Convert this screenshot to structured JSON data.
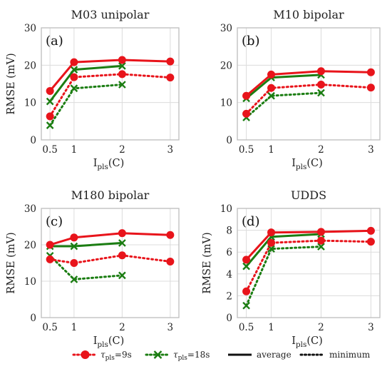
{
  "legend": {
    "items": [
      {
        "kind": "series",
        "color": "#e8141b",
        "marker": "circle",
        "label": "τ",
        "label_sub": "pls",
        "label_rest": "=9s"
      },
      {
        "kind": "series",
        "color": "#1b7d12",
        "marker": "x",
        "label": "τ",
        "label_sub": "pls",
        "label_rest": "=18s"
      },
      {
        "kind": "style",
        "dash": "solid",
        "label": "average"
      },
      {
        "kind": "style",
        "dash": "dotted",
        "label": "minimum"
      }
    ]
  },
  "colors": {
    "tau9": "#e8141b",
    "tau18": "#1b7d12",
    "grid": "#dcdcdc",
    "frame": "#bdbdbd"
  },
  "chart_data": [
    {
      "type": "line",
      "panel_label": "(a)",
      "title": "M03 unipolar",
      "xlabel": "I",
      "xlabel_sub": "pls",
      "xlabel_rest": "(C)",
      "ylabel": "RMSE (mV)",
      "x_ticks": [
        0.5,
        1,
        2,
        3
      ],
      "x_tick_labels": [
        "0.5",
        "1",
        "2",
        "3"
      ],
      "y_ticks": [
        0,
        10,
        20,
        30
      ],
      "ylim": [
        0,
        30
      ],
      "series": [
        {
          "tau": "9s",
          "stat": "average",
          "x": [
            0.5,
            1,
            2,
            3
          ],
          "y": [
            13.1,
            20.8,
            21.4,
            21.0
          ]
        },
        {
          "tau": "9s",
          "stat": "minimum",
          "x": [
            0.5,
            1,
            2,
            3
          ],
          "y": [
            6.3,
            16.8,
            17.6,
            16.7
          ]
        },
        {
          "tau": "18s",
          "stat": "average",
          "x": [
            0.5,
            1,
            2
          ],
          "y": [
            10.3,
            18.8,
            19.8
          ]
        },
        {
          "tau": "18s",
          "stat": "minimum",
          "x": [
            0.5,
            1,
            2
          ],
          "y": [
            3.9,
            13.8,
            14.8
          ]
        }
      ]
    },
    {
      "type": "line",
      "panel_label": "(b)",
      "title": "M10 bipolar",
      "xlabel": "I",
      "xlabel_sub": "pls",
      "xlabel_rest": "(C)",
      "ylabel": "",
      "x_ticks": [
        0.5,
        1,
        2,
        3
      ],
      "x_tick_labels": [
        "0.5",
        "1",
        "2",
        "3"
      ],
      "y_ticks": [
        0,
        10,
        20,
        30
      ],
      "ylim": [
        0,
        30
      ],
      "series": [
        {
          "tau": "9s",
          "stat": "average",
          "x": [
            0.5,
            1,
            2,
            3
          ],
          "y": [
            11.8,
            17.5,
            18.4,
            18.1
          ]
        },
        {
          "tau": "9s",
          "stat": "minimum",
          "x": [
            0.5,
            1,
            2,
            3
          ],
          "y": [
            7.0,
            13.9,
            14.8,
            14.0
          ]
        },
        {
          "tau": "18s",
          "stat": "average",
          "x": [
            0.5,
            1,
            2
          ],
          "y": [
            11.1,
            16.7,
            17.4
          ]
        },
        {
          "tau": "18s",
          "stat": "minimum",
          "x": [
            0.5,
            1,
            2
          ],
          "y": [
            6.0,
            11.8,
            12.6
          ]
        }
      ]
    },
    {
      "type": "line",
      "panel_label": "(c)",
      "title": "M180 bipolar",
      "xlabel": "I",
      "xlabel_sub": "pls",
      "xlabel_rest": "(C)",
      "ylabel": "RMSE (mV)",
      "x_ticks": [
        0.5,
        1,
        2,
        3
      ],
      "x_tick_labels": [
        "0.5",
        "1",
        "2",
        "3"
      ],
      "y_ticks": [
        0,
        10,
        20,
        30
      ],
      "ylim": [
        0,
        30
      ],
      "series": [
        {
          "tau": "9s",
          "stat": "average",
          "x": [
            0.5,
            1,
            2,
            3
          ],
          "y": [
            20.0,
            22.0,
            23.2,
            22.7
          ]
        },
        {
          "tau": "9s",
          "stat": "minimum",
          "x": [
            0.5,
            1,
            2,
            3
          ],
          "y": [
            16.0,
            15.0,
            17.1,
            15.4
          ]
        },
        {
          "tau": "18s",
          "stat": "average",
          "x": [
            0.5,
            1,
            2
          ],
          "y": [
            19.6,
            19.6,
            20.5
          ]
        },
        {
          "tau": "18s",
          "stat": "minimum",
          "x": [
            0.5,
            1,
            2
          ],
          "y": [
            17.0,
            10.5,
            11.6
          ]
        }
      ]
    },
    {
      "type": "line",
      "panel_label": "(d)",
      "title": "UDDS",
      "xlabel": "I",
      "xlabel_sub": "pls",
      "xlabel_rest": "(C)",
      "ylabel": "RMSE (mV)",
      "x_ticks": [
        0.5,
        1,
        2,
        3
      ],
      "x_tick_labels": [
        "0.5",
        "1",
        "2",
        "3"
      ],
      "y_ticks": [
        0,
        2,
        4,
        6,
        8,
        10
      ],
      "ylim": [
        0,
        10
      ],
      "series": [
        {
          "tau": "9s",
          "stat": "average",
          "x": [
            0.5,
            1,
            2,
            3
          ],
          "y": [
            5.3,
            7.8,
            7.85,
            7.95
          ]
        },
        {
          "tau": "9s",
          "stat": "minimum",
          "x": [
            0.5,
            1,
            2,
            3
          ],
          "y": [
            2.4,
            6.85,
            7.05,
            6.95
          ]
        },
        {
          "tau": "18s",
          "stat": "average",
          "x": [
            0.5,
            1,
            2
          ],
          "y": [
            4.7,
            7.4,
            7.65
          ]
        },
        {
          "tau": "18s",
          "stat": "minimum",
          "x": [
            0.5,
            1,
            2
          ],
          "y": [
            1.1,
            6.3,
            6.5
          ]
        }
      ]
    }
  ]
}
